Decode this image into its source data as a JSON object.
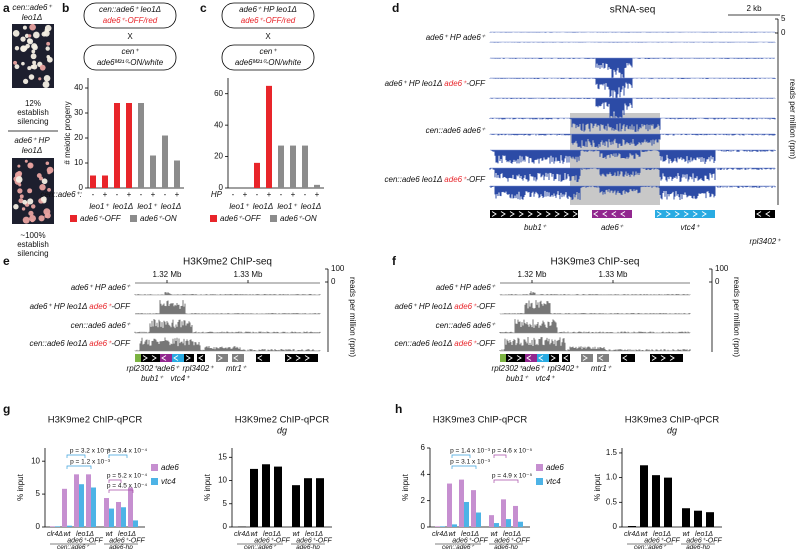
{
  "panels": [
    "a",
    "b",
    "c",
    "d",
    "e",
    "f",
    "g",
    "h"
  ],
  "a": {
    "top_strain": [
      "cen::ade6⁺",
      "leo1Δ"
    ],
    "top_caption": [
      "12%",
      "establish",
      "silencing"
    ],
    "bottom_strain": [
      "ade6⁺ HP",
      "leo1Δ"
    ],
    "bottom_caption": [
      "~100%",
      "establish",
      "silencing"
    ]
  },
  "crosses": [
    {
      "parent1": [
        [
          "cen::ade6⁺ leo1Δ"
        ],
        [
          {
            "text": "ade6⁺-OFF/red",
            "color": "#e8252a"
          }
        ]
      ],
      "x": "X",
      "parent2": [
        [
          "cen⁺"
        ],
        [
          "ade6ᴹ²¹⁰-ON/white"
        ]
      ]
    },
    {
      "parent1": [
        [
          "ade6⁺ HP leo1Δ"
        ],
        [
          {
            "text": "ade6⁺-OFF/red",
            "color": "#e8252a"
          }
        ]
      ],
      "x": "X",
      "parent2": [
        [
          "cen⁺"
        ],
        [
          "ade6ᴹ²¹⁰-ON/white"
        ]
      ]
    }
  ],
  "chart_data": [
    {
      "type": "bar",
      "ylabel": "# meiotic progeny",
      "row_label": "cen::ade6⁺:",
      "categories": [
        "-",
        "+",
        "-",
        "+",
        "-",
        "+",
        "-",
        "+"
      ],
      "groups": [
        "leo1⁺",
        "leo1Δ",
        "leo1⁺",
        "leo1Δ"
      ],
      "series": [
        {
          "name": "ade6⁺-OFF",
          "color": "#e8252a",
          "values": [
            5,
            5,
            34,
            34,
            null,
            null,
            null,
            null
          ]
        },
        {
          "name": "ade6⁺-ON",
          "color": "#8c8c8c",
          "values": [
            null,
            null,
            null,
            null,
            34,
            13,
            21,
            11
          ]
        }
      ],
      "ylim": [
        0,
        44
      ],
      "yticks": [
        0,
        10,
        20,
        30,
        40
      ]
    },
    {
      "type": "bar",
      "row_label": "HP",
      "categories": [
        "-",
        "+",
        "-",
        "+",
        "-",
        "+",
        "-",
        "+"
      ],
      "groups": [
        "leo1⁺",
        "leo1Δ",
        "leo1⁺",
        "leo1Δ"
      ],
      "series": [
        {
          "name": "ade6⁺-OFF",
          "color": "#e8252a",
          "values": [
            0,
            0,
            16,
            65,
            null,
            null,
            null,
            null
          ]
        },
        {
          "name": "ade6⁺-ON",
          "color": "#8c8c8c",
          "values": [
            null,
            null,
            null,
            null,
            27,
            27,
            27,
            2
          ]
        }
      ],
      "ylim": [
        0,
        70
      ],
      "yticks": [
        0,
        20,
        40,
        60
      ]
    },
    {
      "type": "grouped_bar",
      "title": "H3K9me2 ChIP-qPCR",
      "ylabel": "% input",
      "categories": [
        "clr4Δ",
        "wt",
        "leo1Δ",
        null,
        "wt",
        "leo1Δ",
        null
      ],
      "sublabels": [
        null,
        null,
        "ade6⁺-OFF",
        null,
        null,
        "ade6⁺-OFF",
        null
      ],
      "groups": [
        "cen::ade6⁺",
        "ade6-hp"
      ],
      "series": [
        {
          "name": "ade6",
          "color": "#c68fd0",
          "values": [
            0.1,
            5.8,
            8,
            8,
            4.4,
            3.8,
            6
          ]
        },
        {
          "name": "vtc4",
          "color": "#4db3e6",
          "values": [
            0.1,
            0.2,
            6.5,
            6,
            2.8,
            3,
            1
          ]
        }
      ],
      "ylim": [
        0,
        12
      ],
      "yticks": [
        0,
        5,
        10
      ],
      "annotations": [
        {
          "text": "p = 3.2 x 10⁻⁵",
          "color": "#3aa0dc"
        },
        {
          "text": "p = 1.2 x 10⁻³",
          "color": "#3aa0dc"
        },
        {
          "text": "p = 3.4 x 10⁻⁴",
          "color": "#3aa0dc"
        },
        {
          "text": "p = 5.2 x 10⁻⁴",
          "color": "#a64ca6"
        },
        {
          "text": "p = 4.5 x 10⁻⁴",
          "color": "#a64ca6"
        }
      ]
    },
    {
      "type": "bar",
      "title": "H3K9me2 ChIP-qPCR",
      "subtitle": "dg",
      "ylabel": "% input",
      "categories": [
        "clr4Δ",
        "wt",
        "leo1Δ",
        null,
        "wt",
        "leo1Δ",
        null
      ],
      "sublabels": [
        null,
        null,
        "ade6⁺-OFF",
        null,
        null,
        "ade6⁺-OFF",
        null
      ],
      "groups": [
        "cen::ade6⁺",
        "ade6-hp"
      ],
      "color": "#000000",
      "values": [
        0.1,
        12.5,
        13.5,
        13,
        9,
        10.5,
        10.5
      ],
      "ylim": [
        0,
        17
      ],
      "yticks": [
        0,
        5,
        10,
        15
      ]
    },
    {
      "type": "grouped_bar",
      "title": "H3K9me3 ChIP-qPCR",
      "ylabel": "% input",
      "categories": [
        "clr4Δ",
        "wt",
        "leo1Δ",
        null,
        "wt",
        "leo1Δ",
        null
      ],
      "sublabels": [
        null,
        null,
        "ade6⁺-OFF",
        null,
        null,
        "ade6⁺-OFF",
        null
      ],
      "groups": [
        "cen::ade6⁺",
        "ade6-hp"
      ],
      "series": [
        {
          "name": "ade6",
          "color": "#c68fd0",
          "values": [
            0.05,
            3.3,
            3.6,
            2.8,
            0.9,
            2.1,
            1.6
          ]
        },
        {
          "name": "vtc4",
          "color": "#4db3e6",
          "values": [
            0.05,
            0.2,
            1.9,
            1.1,
            0.3,
            0.6,
            0.4
          ]
        }
      ],
      "ylim": [
        0,
        6
      ],
      "yticks": [
        0,
        2,
        4,
        6
      ],
      "annotations": [
        {
          "text": "p = 1.4 x 10⁻³",
          "color": "#3aa0dc"
        },
        {
          "text": "p = 3.1 x 10⁻³",
          "color": "#3aa0dc"
        },
        {
          "text": "p = 4.6 x 10⁻⁵",
          "color": "#a64ca6"
        },
        {
          "text": "p = 4.9 x 10⁻⁵",
          "color": "#a64ca6"
        }
      ]
    },
    {
      "type": "bar",
      "title": "H3K9me3 ChIP-qPCR",
      "subtitle": "dg",
      "ylabel": "% input",
      "categories": [
        "clr4Δ",
        "wt",
        "leo1Δ",
        null,
        "wt",
        "leo1Δ",
        null
      ],
      "sublabels": [
        null,
        null,
        "ade6⁺-OFF",
        null,
        null,
        "ade6⁺-OFF",
        null
      ],
      "groups": [
        "cen::ade6⁺",
        "ade6-hp"
      ],
      "color": "#000000",
      "values": [
        0.02,
        1.25,
        1.05,
        1.0,
        0.38,
        0.33,
        0.3
      ],
      "ylim": [
        0,
        1.6
      ],
      "yticks": [
        0,
        0.5,
        {
          "value": 1,
          "label": "1.0"
        },
        1.5
      ]
    }
  ],
  "browsers": [
    {
      "title": "sRNA-seq",
      "scale_bar": "2 kb",
      "yticks": [
        0,
        5
      ],
      "ylabel": "reads per million (rpm)",
      "tracks": [
        [
          "ade6⁺ HP ade6⁺"
        ],
        [
          "ade6⁺ HP leo1Δ ",
          {
            "text": "ade6⁺",
            "color": "#e8252a"
          },
          "-OFF"
        ],
        [
          "cen::ade6 ade6⁺"
        ],
        [
          "cen::ade6 leo1Δ ",
          {
            "text": "ade6⁺",
            "color": "#e8252a"
          },
          "-OFF"
        ]
      ],
      "genes": [
        {
          "text": "bub1⁺",
          "color": "#000000"
        },
        {
          "text": "ade6⁺",
          "color": "#92278f"
        },
        {
          "text": "vtc4⁺",
          "color": "#29abe2"
        },
        {
          "text": "rpl3402⁺",
          "color": "#000000"
        }
      ]
    },
    {
      "title": "H3K9me2 ChIP-seq",
      "coords": [
        "1.32 Mb",
        "1.33 Mb"
      ],
      "yticks": [
        0,
        100
      ],
      "ylabel": "reads per million (rpm)",
      "tracks": [
        [
          "ade6⁺ HP ade6⁺"
        ],
        [
          "ade6⁺ HP leo1Δ ",
          {
            "text": "ade6⁺",
            "color": "#e8252a"
          },
          "-OFF"
        ],
        [
          "cen::ade6 ade6⁺"
        ],
        [
          "cen::ade6 leo1Δ ",
          {
            "text": "ade6⁺",
            "color": "#e8252a"
          },
          "-OFF"
        ]
      ],
      "genes": [
        {
          "text": "rpl2302⁺",
          "color": "#7cb342"
        },
        {
          "text": "ade6⁺",
          "color": "#92278f"
        },
        {
          "text": "rpl3402⁺",
          "color": "#000000"
        },
        {
          "text": "mtr1⁺",
          "color": "#808080"
        },
        {
          "text": "bub1⁺",
          "color": "#000000"
        },
        {
          "text": "vtc4⁺",
          "color": "#29abe2"
        }
      ]
    },
    {
      "title": "H3K9me3 ChIP-seq",
      "coords": [
        "1.32 Mb",
        "1.33 Mb"
      ],
      "yticks": [
        0,
        100
      ],
      "ylabel": "reads per million (rpm)",
      "tracks": [
        [
          "ade6⁺ HP ade6⁺"
        ],
        [
          "ade6⁺ HP leo1Δ ",
          {
            "text": "ade6⁺",
            "color": "#e8252a"
          },
          "-OFF"
        ],
        [
          "cen::ade6 ade6⁺"
        ],
        [
          "cen::ade6 leo1Δ ",
          {
            "text": "ade6⁺",
            "color": "#e8252a"
          },
          "-OFF"
        ]
      ],
      "genes": [
        {
          "text": "rpl2302⁺",
          "color": "#7cb342"
        },
        {
          "text": "ade6⁺",
          "color": "#92278f"
        },
        {
          "text": "rpl3402⁺",
          "color": "#000000"
        },
        {
          "text": "mtr1⁺",
          "color": "#808080"
        },
        {
          "text": "bub1⁺",
          "color": "#000000"
        },
        {
          "text": "vtc4⁺",
          "color": "#29abe2"
        }
      ]
    }
  ]
}
